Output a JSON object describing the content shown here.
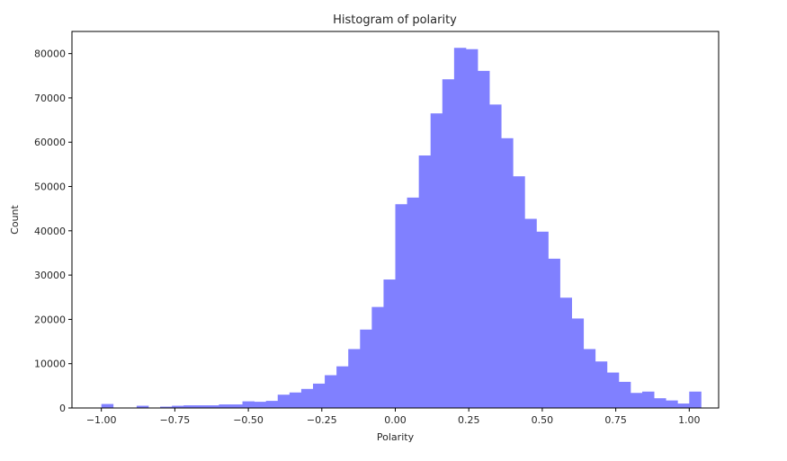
{
  "chart_data": {
    "type": "bar",
    "title": "Histogram of polarity",
    "xlabel": "Polarity",
    "ylabel": "Count",
    "xlim": [
      -1.1,
      1.1
    ],
    "ylim": [
      0,
      85000
    ],
    "grid": false,
    "bar_color": "#8080ff",
    "bin_width": 0.04,
    "bins_start": -1.0,
    "x_ticks": [
      -1.0,
      -0.75,
      -0.5,
      -0.25,
      0.0,
      0.25,
      0.5,
      0.75,
      1.0
    ],
    "x_tick_labels": [
      "−1.00",
      "−0.75",
      "−0.50",
      "−0.25",
      "0.00",
      "0.25",
      "0.50",
      "0.75",
      "1.00"
    ],
    "y_ticks": [
      0,
      10000,
      20000,
      30000,
      40000,
      50000,
      60000,
      70000,
      80000
    ],
    "y_tick_labels": [
      "0",
      "10000",
      "20000",
      "30000",
      "40000",
      "50000",
      "60000",
      "70000",
      "80000"
    ],
    "values": [
      900,
      50,
      100,
      500,
      100,
      300,
      500,
      600,
      600,
      600,
      800,
      800,
      1500,
      1400,
      1600,
      3000,
      3500,
      4300,
      5500,
      7400,
      9400,
      13300,
      17700,
      22800,
      29000,
      46000,
      47500,
      57000,
      66500,
      74200,
      81300,
      81000,
      76100,
      68500,
      60900,
      52300,
      42700,
      39800,
      33700,
      24900,
      20200,
      13300,
      10500,
      8000,
      5900,
      3400,
      3700,
      2200,
      1700,
      1000,
      3700
    ]
  }
}
